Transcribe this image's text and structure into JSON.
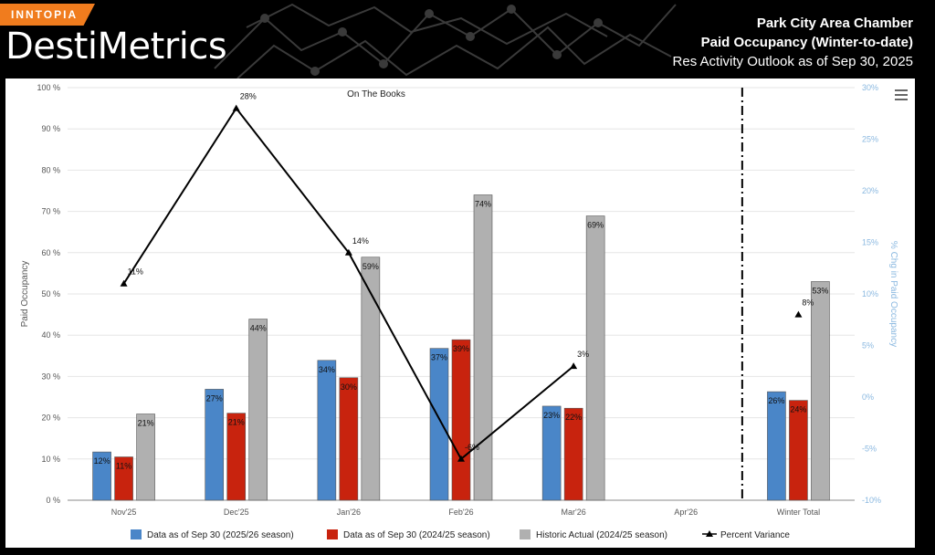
{
  "header": {
    "badge": "INNTOPIA",
    "brand": "DestiMetrics",
    "title_line1": "Park City Area Chamber",
    "title_line2": "Paid Occupancy (Winter-to-date)",
    "title_line3": "Res Activity Outlook as of Sep 30, 2025"
  },
  "menu_icon": "hamburger-menu-icon",
  "colors": {
    "current": "#4a86c8",
    "prior": "#c8230e",
    "historic": "#b0b0b0",
    "variance": "#000000",
    "right_axis": "#8ab8e0"
  },
  "chart_data": {
    "type": "bar",
    "title": "On The Books",
    "categories": [
      "Nov'25",
      "Dec'25",
      "Jan'26",
      "Feb'26",
      "Mar'26",
      "Apr'26",
      "Winter Total"
    ],
    "ylabel": "Paid Occupancy",
    "y2label": "% Chg in Paid Occupancy",
    "ylim": [
      0,
      100
    ],
    "y2lim": [
      -10,
      30
    ],
    "yticks": [
      "0 %",
      "10 %",
      "20 %",
      "30 %",
      "40 %",
      "50 %",
      "60 %",
      "70 %",
      "80 %",
      "90 %",
      "100 %"
    ],
    "y2ticks": [
      "-10%",
      "-5%",
      "0%",
      "5%",
      "10%",
      "15%",
      "20%",
      "25%",
      "30%"
    ],
    "series": [
      {
        "name": "Data as of Sep 30 (2025/26 season)",
        "values": [
          11.7,
          26.9,
          33.9,
          36.8,
          22.8,
          null,
          26.3
        ],
        "labels": [
          "12%",
          "27%",
          "34%",
          "37%",
          "23%",
          "",
          "26%"
        ]
      },
      {
        "name": "Data as of Sep 30 (2024/25 season)",
        "values": [
          10.5,
          21.1,
          29.7,
          38.9,
          22.3,
          null,
          24.2
        ],
        "labels": [
          "11%",
          "21%",
          "30%",
          "39%",
          "22%",
          "",
          "24%"
        ]
      },
      {
        "name": "Historic Actual (2024/25 season)",
        "values": [
          20.9,
          43.9,
          58.9,
          74.0,
          68.9,
          null,
          53.0
        ],
        "labels": [
          "21%",
          "44%",
          "59%",
          "74%",
          "69%",
          "",
          "53%"
        ]
      }
    ],
    "variance": {
      "name": "Percent Variance",
      "values": [
        11,
        28,
        14,
        -6,
        3,
        null,
        8
      ],
      "labels": [
        "11%",
        "28%",
        "14%",
        "-6%",
        "3%",
        "",
        "8%"
      ]
    },
    "separator_after": "Apr'26",
    "legend_position": "bottom"
  }
}
